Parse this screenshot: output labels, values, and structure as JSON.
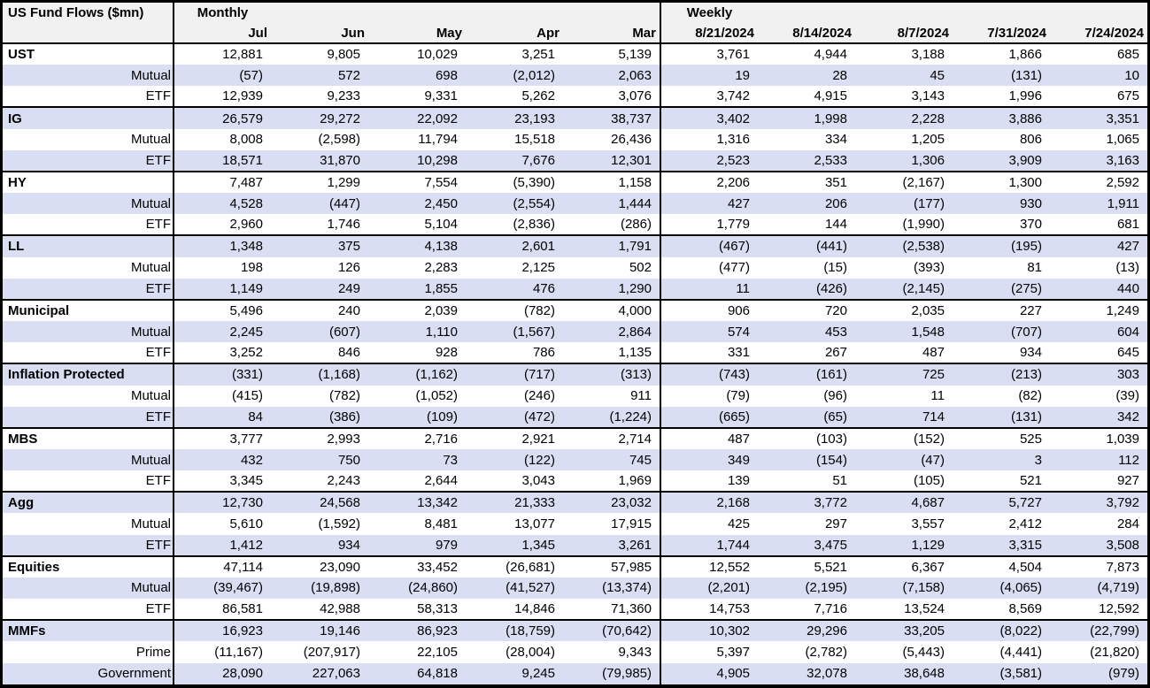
{
  "colors": {
    "stripe_row": "#d9def2",
    "header_bg": "#f1f1f1",
    "border": "#000000",
    "text": "#000000",
    "plain_row": "#ffffff"
  },
  "chart_data": {
    "type": "table",
    "title": "US Fund Flows ($mn)",
    "sections": [
      {
        "label": "Monthly",
        "columns": [
          "Jul",
          "Jun",
          "May",
          "Apr",
          "Mar"
        ]
      },
      {
        "label": "Weekly",
        "columns": [
          "8/21/2024",
          "8/14/2024",
          "8/7/2024",
          "7/31/2024",
          "7/24/2024"
        ]
      }
    ],
    "negative_format": "parentheses",
    "groups": [
      {
        "name": "UST",
        "total": {
          "monthly": [
            "12,881",
            "9,805",
            "10,029",
            "3,251",
            "5,139"
          ],
          "weekly": [
            "3,761",
            "4,944",
            "3,188",
            "1,866",
            "685"
          ]
        },
        "rows": [
          {
            "label": "Mutual",
            "monthly": [
              "(57)",
              "572",
              "698",
              "(2,012)",
              "2,063"
            ],
            "weekly": [
              "19",
              "28",
              "45",
              "(131)",
              "10"
            ]
          },
          {
            "label": "ETF",
            "monthly": [
              "12,939",
              "9,233",
              "9,331",
              "5,262",
              "3,076"
            ],
            "weekly": [
              "3,742",
              "4,915",
              "3,143",
              "1,996",
              "675"
            ]
          }
        ]
      },
      {
        "name": "IG",
        "total": {
          "monthly": [
            "26,579",
            "29,272",
            "22,092",
            "23,193",
            "38,737"
          ],
          "weekly": [
            "3,402",
            "1,998",
            "2,228",
            "3,886",
            "3,351"
          ]
        },
        "rows": [
          {
            "label": "Mutual",
            "monthly": [
              "8,008",
              "(2,598)",
              "11,794",
              "15,518",
              "26,436"
            ],
            "weekly": [
              "1,316",
              "334",
              "1,205",
              "806",
              "1,065"
            ]
          },
          {
            "label": "ETF",
            "monthly": [
              "18,571",
              "31,870",
              "10,298",
              "7,676",
              "12,301"
            ],
            "weekly": [
              "2,523",
              "2,533",
              "1,306",
              "3,909",
              "3,163"
            ]
          }
        ]
      },
      {
        "name": "HY",
        "total": {
          "monthly": [
            "7,487",
            "1,299",
            "7,554",
            "(5,390)",
            "1,158"
          ],
          "weekly": [
            "2,206",
            "351",
            "(2,167)",
            "1,300",
            "2,592"
          ]
        },
        "rows": [
          {
            "label": "Mutual",
            "monthly": [
              "4,528",
              "(447)",
              "2,450",
              "(2,554)",
              "1,444"
            ],
            "weekly": [
              "427",
              "206",
              "(177)",
              "930",
              "1,911"
            ]
          },
          {
            "label": "ETF",
            "monthly": [
              "2,960",
              "1,746",
              "5,104",
              "(2,836)",
              "(286)"
            ],
            "weekly": [
              "1,779",
              "144",
              "(1,990)",
              "370",
              "681"
            ]
          }
        ]
      },
      {
        "name": "LL",
        "total": {
          "monthly": [
            "1,348",
            "375",
            "4,138",
            "2,601",
            "1,791"
          ],
          "weekly": [
            "(467)",
            "(441)",
            "(2,538)",
            "(195)",
            "427"
          ]
        },
        "rows": [
          {
            "label": "Mutual",
            "monthly": [
              "198",
              "126",
              "2,283",
              "2,125",
              "502"
            ],
            "weekly": [
              "(477)",
              "(15)",
              "(393)",
              "81",
              "(13)"
            ]
          },
          {
            "label": "ETF",
            "monthly": [
              "1,149",
              "249",
              "1,855",
              "476",
              "1,290"
            ],
            "weekly": [
              "11",
              "(426)",
              "(2,145)",
              "(275)",
              "440"
            ]
          }
        ]
      },
      {
        "name": "Municipal",
        "total": {
          "monthly": [
            "5,496",
            "240",
            "2,039",
            "(782)",
            "4,000"
          ],
          "weekly": [
            "906",
            "720",
            "2,035",
            "227",
            "1,249"
          ]
        },
        "rows": [
          {
            "label": "Mutual",
            "monthly": [
              "2,245",
              "(607)",
              "1,110",
              "(1,567)",
              "2,864"
            ],
            "weekly": [
              "574",
              "453",
              "1,548",
              "(707)",
              "604"
            ]
          },
          {
            "label": "ETF",
            "monthly": [
              "3,252",
              "846",
              "928",
              "786",
              "1,135"
            ],
            "weekly": [
              "331",
              "267",
              "487",
              "934",
              "645"
            ]
          }
        ]
      },
      {
        "name": "Inflation Protected",
        "total": {
          "monthly": [
            "(331)",
            "(1,168)",
            "(1,162)",
            "(717)",
            "(313)"
          ],
          "weekly": [
            "(743)",
            "(161)",
            "725",
            "(213)",
            "303"
          ]
        },
        "rows": [
          {
            "label": "Mutual",
            "monthly": [
              "(415)",
              "(782)",
              "(1,052)",
              "(246)",
              "911"
            ],
            "weekly": [
              "(79)",
              "(96)",
              "11",
              "(82)",
              "(39)"
            ]
          },
          {
            "label": "ETF",
            "monthly": [
              "84",
              "(386)",
              "(109)",
              "(472)",
              "(1,224)"
            ],
            "weekly": [
              "(665)",
              "(65)",
              "714",
              "(131)",
              "342"
            ]
          }
        ]
      },
      {
        "name": "MBS",
        "total": {
          "monthly": [
            "3,777",
            "2,993",
            "2,716",
            "2,921",
            "2,714"
          ],
          "weekly": [
            "487",
            "(103)",
            "(152)",
            "525",
            "1,039"
          ]
        },
        "rows": [
          {
            "label": "Mutual",
            "monthly": [
              "432",
              "750",
              "73",
              "(122)",
              "745"
            ],
            "weekly": [
              "349",
              "(154)",
              "(47)",
              "3",
              "112"
            ]
          },
          {
            "label": "ETF",
            "monthly": [
              "3,345",
              "2,243",
              "2,644",
              "3,043",
              "1,969"
            ],
            "weekly": [
              "139",
              "51",
              "(105)",
              "521",
              "927"
            ]
          }
        ]
      },
      {
        "name": "Agg",
        "total": {
          "monthly": [
            "12,730",
            "24,568",
            "13,342",
            "21,333",
            "23,032"
          ],
          "weekly": [
            "2,168",
            "3,772",
            "4,687",
            "5,727",
            "3,792"
          ]
        },
        "rows": [
          {
            "label": "Mutual",
            "monthly": [
              "5,610",
              "(1,592)",
              "8,481",
              "13,077",
              "17,915"
            ],
            "weekly": [
              "425",
              "297",
              "3,557",
              "2,412",
              "284"
            ]
          },
          {
            "label": "ETF",
            "monthly": [
              "1,412",
              "934",
              "979",
              "1,345",
              "3,261"
            ],
            "weekly": [
              "1,744",
              "3,475",
              "1,129",
              "3,315",
              "3,508"
            ]
          }
        ]
      },
      {
        "name": "Equities",
        "total": {
          "monthly": [
            "47,114",
            "23,090",
            "33,452",
            "(26,681)",
            "57,985"
          ],
          "weekly": [
            "12,552",
            "5,521",
            "6,367",
            "4,504",
            "7,873"
          ]
        },
        "rows": [
          {
            "label": "Mutual",
            "monthly": [
              "(39,467)",
              "(19,898)",
              "(24,860)",
              "(41,527)",
              "(13,374)"
            ],
            "weekly": [
              "(2,201)",
              "(2,195)",
              "(7,158)",
              "(4,065)",
              "(4,719)"
            ]
          },
          {
            "label": "ETF",
            "monthly": [
              "86,581",
              "42,988",
              "58,313",
              "14,846",
              "71,360"
            ],
            "weekly": [
              "14,753",
              "7,716",
              "13,524",
              "8,569",
              "12,592"
            ]
          }
        ]
      },
      {
        "name": "MMFs",
        "total": {
          "monthly": [
            "16,923",
            "19,146",
            "86,923",
            "(18,759)",
            "(70,642)"
          ],
          "weekly": [
            "10,302",
            "29,296",
            "33,205",
            "(8,022)",
            "(22,799)"
          ]
        },
        "rows": [
          {
            "label": "Prime",
            "monthly": [
              "(11,167)",
              "(207,917)",
              "22,105",
              "(28,004)",
              "9,343"
            ],
            "weekly": [
              "5,397",
              "(2,782)",
              "(5,443)",
              "(4,441)",
              "(21,820)"
            ]
          },
          {
            "label": "Government",
            "monthly": [
              "28,090",
              "227,063",
              "64,818",
              "9,245",
              "(79,985)"
            ],
            "weekly": [
              "4,905",
              "32,078",
              "38,648",
              "(3,581)",
              "(979)"
            ]
          }
        ]
      }
    ]
  }
}
